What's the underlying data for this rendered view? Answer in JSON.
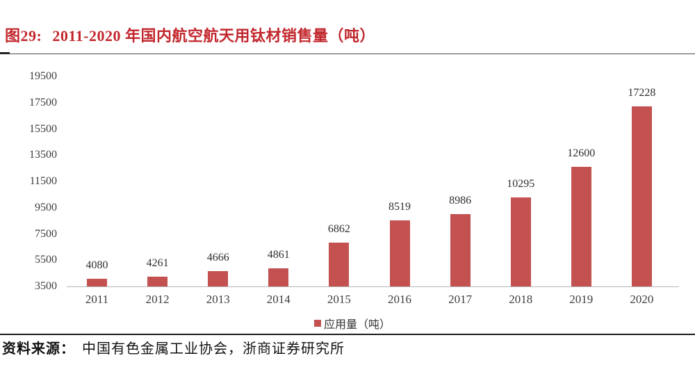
{
  "figure": {
    "label": "图29:",
    "title": "2011-2020 年国内航空航天用钛材销售量（吨）",
    "accent_color": "#c2272d"
  },
  "chart_data": {
    "type": "bar",
    "categories": [
      "2011",
      "2012",
      "2013",
      "2014",
      "2015",
      "2016",
      "2017",
      "2018",
      "2019",
      "2020"
    ],
    "values": [
      4080,
      4261,
      4666,
      4861,
      6862,
      8519,
      8986,
      10295,
      12600,
      17228
    ],
    "series_name": "应用量（吨）",
    "title": "2011-2020 年国内航空航天用钛材销售量（吨）",
    "xlabel": "",
    "ylabel": "",
    "ylim": [
      3500,
      19500
    ],
    "ytick_step": 2000,
    "yticks": [
      19500,
      17500,
      15500,
      13500,
      11500,
      9500,
      7500,
      5500,
      3500
    ],
    "bar_color": "#c25150",
    "legend_position": "bottom",
    "grid": false
  },
  "legend": {
    "label": "应用量（吨）"
  },
  "source": {
    "prefix": "资料来源：",
    "text": "中国有色金属工业协会，浙商证券研究所"
  }
}
